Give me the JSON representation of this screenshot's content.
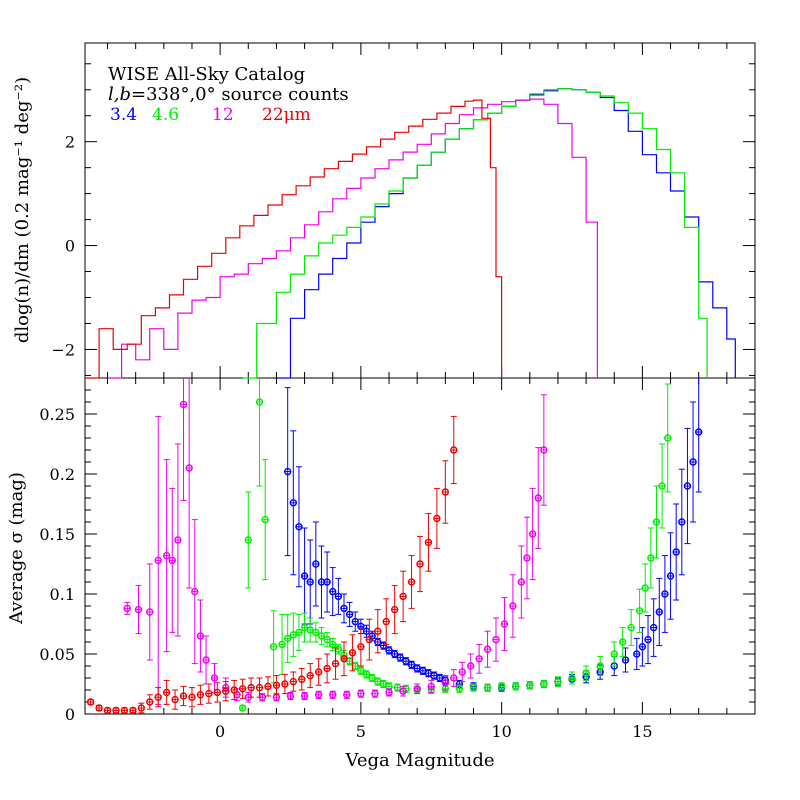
{
  "chart_data": [
    {
      "type": "line",
      "panel": "top",
      "title": "WISE All-Sky Catalog",
      "subtitle_prefix": "l,b",
      "subtitle_rest": "=338°,0° source counts",
      "ylabel": "dlog(n)/dm (0.2 mag⁻¹ deg⁻²)",
      "xlim": [
        -4.8,
        19
      ],
      "ylim": [
        -2.55,
        3.9
      ],
      "yticks": [
        -2,
        0,
        2
      ],
      "yticklabels": [
        "−2",
        "0",
        "2"
      ],
      "legend_position": "top-left",
      "series": [
        {
          "name": "3.4",
          "color": "#0000ff",
          "x": [
            2.0,
            2.5,
            3.0,
            3.5,
            4.0,
            4.5,
            5.0,
            5.5,
            6.0,
            6.5,
            7.0,
            7.5,
            8.0,
            8.5,
            9.0,
            9.5,
            10.0,
            10.5,
            11.0,
            11.5,
            12.0,
            12.5,
            13.0,
            13.5,
            14.0,
            14.5,
            15.0,
            15.5,
            16.0,
            16.5,
            17.0,
            17.5,
            18.0,
            18.3
          ],
          "y": [
            -2.6,
            -1.4,
            -0.85,
            -0.55,
            -0.25,
            0.05,
            0.45,
            0.75,
            1.0,
            1.3,
            1.55,
            1.8,
            2.05,
            2.25,
            2.42,
            2.55,
            2.68,
            2.8,
            2.9,
            2.98,
            3.02,
            3.0,
            2.95,
            2.85,
            2.6,
            2.2,
            1.75,
            1.4,
            1.05,
            0.55,
            -0.7,
            -1.2,
            -1.8,
            -2.6
          ]
        },
        {
          "name": "4.6",
          "color": "#00ee00",
          "x": [
            0.8,
            1.3,
            2.0,
            2.5,
            3.0,
            3.5,
            4.0,
            4.5,
            5.0,
            5.5,
            6.0,
            6.5,
            7.0,
            7.5,
            8.0,
            8.5,
            9.0,
            9.5,
            10.0,
            10.5,
            11.0,
            11.5,
            12.0,
            12.5,
            13.0,
            13.5,
            14.0,
            14.5,
            15.0,
            15.5,
            16.0,
            16.5,
            17.0,
            17.3
          ],
          "y": [
            -2.6,
            -1.5,
            -0.9,
            -0.55,
            -0.2,
            0.05,
            0.2,
            0.35,
            0.55,
            0.8,
            1.05,
            1.3,
            1.55,
            1.8,
            2.05,
            2.25,
            2.42,
            2.55,
            2.68,
            2.8,
            2.92,
            3.0,
            3.02,
            3.0,
            2.95,
            2.88,
            2.75,
            2.55,
            2.25,
            1.85,
            1.4,
            0.35,
            -1.4,
            -2.6
          ]
        },
        {
          "name": "12",
          "color": "#ee00ee",
          "x": [
            -4.0,
            -3.5,
            -3.0,
            -2.5,
            -2.0,
            -1.5,
            -1.0,
            -0.5,
            0.0,
            0.5,
            1.0,
            1.5,
            2.0,
            2.5,
            3.0,
            3.5,
            4.0,
            4.5,
            5.0,
            5.5,
            6.0,
            6.5,
            7.0,
            7.5,
            8.0,
            8.5,
            9.0,
            9.5,
            10.0,
            10.5,
            11.0,
            11.5,
            12.0,
            12.5,
            13.0,
            13.4
          ],
          "y": [
            -2.6,
            -1.9,
            -2.2,
            -1.6,
            -2.0,
            -1.3,
            -1.05,
            -1.0,
            -0.6,
            -0.55,
            -0.35,
            -0.25,
            -0.1,
            0.15,
            0.4,
            0.65,
            0.9,
            1.1,
            1.3,
            1.48,
            1.65,
            1.8,
            1.95,
            2.15,
            2.35,
            2.52,
            2.65,
            2.72,
            2.77,
            2.8,
            2.82,
            2.72,
            2.35,
            1.7,
            0.45,
            -2.6
          ]
        },
        {
          "name": "22μm",
          "color": "#ee0000",
          "x": [
            -4.8,
            -4.3,
            -3.8,
            -3.3,
            -2.8,
            -2.3,
            -1.8,
            -1.3,
            -0.8,
            -0.3,
            0.2,
            0.7,
            1.2,
            1.7,
            2.2,
            2.7,
            3.2,
            3.7,
            4.2,
            4.7,
            5.2,
            5.7,
            6.2,
            6.7,
            7.2,
            7.7,
            8.2,
            8.7,
            9.0,
            9.3,
            9.6,
            9.8,
            10.0
          ],
          "y": [
            -2.6,
            -1.6,
            -2.0,
            -1.9,
            -1.35,
            -1.2,
            -0.95,
            -0.65,
            -0.4,
            -0.15,
            0.15,
            0.38,
            0.58,
            0.78,
            0.98,
            1.15,
            1.32,
            1.48,
            1.62,
            1.76,
            1.9,
            2.05,
            2.18,
            2.3,
            2.43,
            2.55,
            2.68,
            2.78,
            2.8,
            2.45,
            1.5,
            -0.6,
            -2.6
          ]
        }
      ]
    },
    {
      "type": "scatter",
      "panel": "bottom",
      "xlabel": "Vega Magnitude",
      "ylabel": "Average σ (mag)",
      "xlim": [
        -4.8,
        19
      ],
      "ylim": [
        0,
        0.28
      ],
      "xticks": [
        0,
        5,
        10,
        15
      ],
      "xticklabels": [
        "0",
        "5",
        "10",
        "15"
      ],
      "yticks": [
        0,
        0.05,
        0.1,
        0.15,
        0.2,
        0.25
      ],
      "yticklabels": [
        "0",
        "0.05",
        "0.1",
        "0.15",
        "0.2",
        "0.25"
      ],
      "series": [
        {
          "name": "3.4",
          "color": "#0000ff",
          "x": [
            2.4,
            2.6,
            2.8,
            3.0,
            3.2,
            3.4,
            3.6,
            3.8,
            4.0,
            4.2,
            4.4,
            4.6,
            4.8,
            5.0,
            5.2,
            5.4,
            5.6,
            5.8,
            6.0,
            6.2,
            6.4,
            6.6,
            6.8,
            7.0,
            7.2,
            7.4,
            7.6,
            7.8,
            8.0,
            8.5,
            9.0,
            9.5,
            10.0,
            10.5,
            11.0,
            11.5,
            12.0,
            12.5,
            13.0,
            13.5,
            14.0,
            14.4,
            14.8,
            15.0,
            15.2,
            15.4,
            15.6,
            15.8,
            16.0,
            16.2,
            16.4,
            16.6,
            16.8,
            17.0
          ],
          "y": [
            0.202,
            0.176,
            0.156,
            0.115,
            0.11,
            0.125,
            0.11,
            0.11,
            0.102,
            0.098,
            0.088,
            0.083,
            0.077,
            0.073,
            0.069,
            0.065,
            0.06,
            0.057,
            0.053,
            0.05,
            0.047,
            0.044,
            0.041,
            0.038,
            0.036,
            0.034,
            0.032,
            0.03,
            0.028,
            0.025,
            0.023,
            0.022,
            0.022,
            0.023,
            0.024,
            0.025,
            0.027,
            0.029,
            0.031,
            0.035,
            0.04,
            0.045,
            0.05,
            0.056,
            0.062,
            0.072,
            0.085,
            0.1,
            0.115,
            0.135,
            0.16,
            0.19,
            0.21,
            0.235
          ],
          "err": [
            0.07,
            0.06,
            0.05,
            0.04,
            0.035,
            0.035,
            0.03,
            0.025,
            0.02,
            0.015,
            0.012,
            0.01,
            0.008,
            0.006,
            0.005,
            0.004,
            0.003,
            0.003,
            0.003,
            0.003,
            0.003,
            0.003,
            0.003,
            0.003,
            0.003,
            0.003,
            0.003,
            0.003,
            0.003,
            0.003,
            0.003,
            0.003,
            0.003,
            0.003,
            0.003,
            0.003,
            0.003,
            0.004,
            0.005,
            0.006,
            0.008,
            0.01,
            0.013,
            0.016,
            0.02,
            0.024,
            0.028,
            0.032,
            0.036,
            0.04,
            0.044,
            0.048,
            0.05,
            0.05
          ]
        },
        {
          "name": "4.6",
          "color": "#00ee00",
          "x": [
            0.8,
            1.0,
            1.4,
            1.6,
            1.9,
            2.2,
            2.4,
            2.6,
            2.8,
            3.0,
            3.2,
            3.4,
            3.6,
            3.8,
            4.0,
            4.2,
            4.4,
            4.6,
            4.8,
            5.0,
            5.2,
            5.4,
            5.6,
            5.8,
            6.0,
            6.3,
            6.6,
            7.0,
            7.5,
            8.0,
            8.5,
            9.0,
            9.5,
            10.0,
            10.5,
            11.0,
            11.5,
            12.0,
            12.5,
            13.0,
            13.5,
            14.0,
            14.3,
            14.6,
            14.9,
            15.1,
            15.3,
            15.5,
            15.7,
            15.9
          ],
          "y": [
            0.005,
            0.145,
            0.26,
            0.162,
            0.056,
            0.058,
            0.063,
            0.066,
            0.068,
            0.072,
            0.07,
            0.068,
            0.065,
            0.062,
            0.058,
            0.054,
            0.049,
            0.044,
            0.04,
            0.036,
            0.033,
            0.03,
            0.027,
            0.025,
            0.023,
            0.022,
            0.021,
            0.02,
            0.02,
            0.021,
            0.021,
            0.022,
            0.022,
            0.023,
            0.023,
            0.024,
            0.025,
            0.027,
            0.03,
            0.034,
            0.04,
            0.05,
            0.06,
            0.072,
            0.086,
            0.105,
            0.13,
            0.16,
            0.19,
            0.23
          ],
          "err": [
            0.002,
            0.04,
            0.07,
            0.05,
            0.03,
            0.025,
            0.02,
            0.018,
            0.015,
            0.012,
            0.01,
            0.008,
            0.007,
            0.006,
            0.005,
            0.004,
            0.004,
            0.003,
            0.003,
            0.003,
            0.003,
            0.003,
            0.003,
            0.003,
            0.003,
            0.003,
            0.003,
            0.003,
            0.003,
            0.003,
            0.003,
            0.003,
            0.003,
            0.003,
            0.003,
            0.003,
            0.003,
            0.004,
            0.005,
            0.006,
            0.008,
            0.01,
            0.012,
            0.015,
            0.018,
            0.02,
            0.025,
            0.03,
            0.035,
            0.045
          ]
        },
        {
          "name": "12",
          "color": "#ee00ee",
          "x": [
            -3.3,
            -2.9,
            -2.5,
            -2.2,
            -1.9,
            -1.7,
            -1.5,
            -1.3,
            -1.1,
            -0.9,
            -0.7,
            -0.5,
            -0.2,
            0.2,
            0.6,
            1.0,
            1.5,
            2.0,
            2.5,
            3.0,
            3.5,
            4.0,
            4.5,
            5.0,
            5.5,
            6.0,
            6.5,
            7.0,
            7.5,
            8.0,
            8.3,
            8.6,
            8.9,
            9.2,
            9.5,
            9.8,
            10.1,
            10.4,
            10.7,
            10.9,
            11.1,
            11.3,
            11.5
          ],
          "y": [
            0.088,
            0.087,
            0.085,
            0.128,
            0.132,
            0.128,
            0.145,
            0.258,
            0.205,
            0.102,
            0.065,
            0.045,
            0.03,
            0.022,
            0.016,
            0.014,
            0.014,
            0.014,
            0.015,
            0.015,
            0.016,
            0.016,
            0.016,
            0.017,
            0.017,
            0.018,
            0.019,
            0.021,
            0.023,
            0.026,
            0.03,
            0.035,
            0.04,
            0.046,
            0.054,
            0.062,
            0.075,
            0.09,
            0.11,
            0.13,
            0.15,
            0.18,
            0.22
          ],
          "err": [
            0.005,
            0.02,
            0.04,
            0.12,
            0.08,
            0.06,
            0.08,
            0.08,
            0.1,
            0.06,
            0.03,
            0.02,
            0.012,
            0.008,
            0.005,
            0.004,
            0.003,
            0.003,
            0.003,
            0.003,
            0.003,
            0.003,
            0.003,
            0.003,
            0.003,
            0.003,
            0.004,
            0.004,
            0.005,
            0.006,
            0.007,
            0.008,
            0.01,
            0.012,
            0.015,
            0.018,
            0.022,
            0.026,
            0.03,
            0.034,
            0.038,
            0.042,
            0.046
          ]
        },
        {
          "name": "22μm",
          "color": "#ee0000",
          "x": [
            -4.6,
            -4.3,
            -4.0,
            -3.7,
            -3.4,
            -3.1,
            -2.8,
            -2.5,
            -2.2,
            -1.9,
            -1.6,
            -1.3,
            -1.0,
            -0.7,
            -0.4,
            -0.1,
            0.2,
            0.5,
            0.8,
            1.1,
            1.4,
            1.7,
            2.0,
            2.3,
            2.6,
            2.9,
            3.2,
            3.5,
            3.8,
            4.1,
            4.4,
            4.7,
            5.0,
            5.3,
            5.6,
            5.9,
            6.2,
            6.5,
            6.8,
            7.1,
            7.4,
            7.7,
            8.0,
            8.3
          ],
          "y": [
            0.01,
            0.005,
            0.003,
            0.003,
            0.003,
            0.003,
            0.005,
            0.01,
            0.014,
            0.018,
            0.012,
            0.015,
            0.014,
            0.016,
            0.017,
            0.018,
            0.019,
            0.02,
            0.021,
            0.022,
            0.022,
            0.023,
            0.024,
            0.025,
            0.027,
            0.029,
            0.032,
            0.035,
            0.038,
            0.042,
            0.046,
            0.051,
            0.056,
            0.062,
            0.069,
            0.077,
            0.087,
            0.098,
            0.11,
            0.125,
            0.143,
            0.163,
            0.185,
            0.22
          ],
          "err": [
            0.002,
            0.002,
            0.002,
            0.002,
            0.002,
            0.002,
            0.004,
            0.006,
            0.008,
            0.01,
            0.008,
            0.008,
            0.008,
            0.008,
            0.008,
            0.008,
            0.008,
            0.008,
            0.008,
            0.008,
            0.008,
            0.008,
            0.008,
            0.008,
            0.008,
            0.009,
            0.01,
            0.011,
            0.012,
            0.013,
            0.014,
            0.015,
            0.016,
            0.017,
            0.018,
            0.019,
            0.02,
            0.021,
            0.022,
            0.023,
            0.024,
            0.025,
            0.026,
            0.028
          ]
        }
      ]
    }
  ]
}
